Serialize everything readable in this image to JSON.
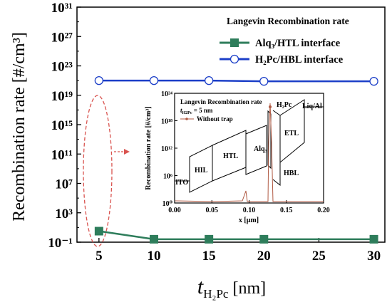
{
  "chart_data": {
    "type": "scatter",
    "xlabel": {
      "main": "t",
      "sub": "H₂Pc",
      "unit": " [nm]"
    },
    "ylabel": "Recombination rate [#/cm³]",
    "x_ticks": [
      "5",
      "10",
      "15",
      "20",
      "25",
      "30"
    ],
    "y_ticks": [
      "10⁻¹",
      "10³",
      "10⁷",
      "10¹¹",
      "10¹⁵",
      "10¹⁹",
      "10²³",
      "10²⁷",
      "10³¹"
    ],
    "xlim": [
      3,
      31
    ],
    "ylim_log10": [
      -1,
      31
    ],
    "legend": {
      "title": "Langevin Recombination rate",
      "entries": [
        {
          "label": "Alq₃/HTL interface",
          "color": "#2e7d5b",
          "marker": "filled-square"
        },
        {
          "label": "H₂Pc/HBL interface",
          "color": "#1c3fc8",
          "marker": "open-circle"
        }
      ]
    },
    "series": [
      {
        "name": "Alq₃/HTL interface",
        "color": "#2e7d5b",
        "x": [
          5,
          10,
          15,
          20,
          30
        ],
        "y_log10": [
          0.5,
          -0.6,
          -0.6,
          -0.6,
          -0.6
        ]
      },
      {
        "name": "H₂Pc/HBL interface",
        "color": "#1c3fc8",
        "x": [
          5,
          10,
          15,
          20,
          30
        ],
        "y_log10": [
          21.0,
          21.0,
          21.0,
          20.9,
          20.9
        ]
      }
    ],
    "inset": {
      "title": "Langevin Recombination rate",
      "subtitle": "t",
      "subtitle_sub": "H2Pc",
      "subtitle_rest": " = 5 nm",
      "trap_label": "Without trap",
      "xlabel": "x [μm]",
      "ylabel": "Recombination rate [#/cm³]",
      "x_ticks": [
        "0.00",
        "0.05",
        "0.10",
        "0.15",
        "0.20"
      ],
      "y_ticks": [
        "10⁰",
        "10⁶",
        "10¹²",
        "10¹⁸",
        "10²⁴"
      ],
      "xlim": [
        0,
        0.2
      ],
      "ylim_log10": [
        0,
        24
      ],
      "regions": [
        "ITO",
        "HIL",
        "HTL",
        "Alq₃",
        "H₂Pc",
        "HBL",
        "ETL",
        "Liq/Al"
      ]
    }
  }
}
